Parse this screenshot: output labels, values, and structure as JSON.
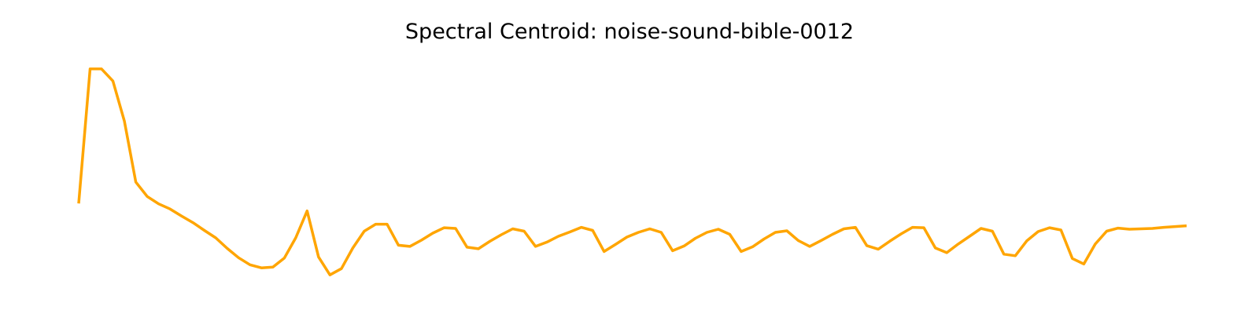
{
  "chart_data": {
    "type": "line",
    "title": "Spectral Centroid: noise-sound-bible-0012",
    "xlabel": "",
    "ylabel": "",
    "axes_visible": false,
    "grid": false,
    "series": [
      {
        "color": "#FFA500",
        "values": [
          3395,
          5120,
          5120,
          4965,
          4450,
          3670,
          3485,
          3390,
          3325,
          3235,
          3150,
          3050,
          2955,
          2820,
          2700,
          2610,
          2570,
          2580,
          2695,
          2955,
          3300,
          2710,
          2480,
          2560,
          2825,
          3040,
          3130,
          3130,
          2860,
          2845,
          2925,
          3015,
          3085,
          3075,
          2835,
          2815,
          2910,
          2995,
          3070,
          3040,
          2845,
          2900,
          2975,
          3030,
          3090,
          3050,
          2780,
          2870,
          2965,
          3025,
          3070,
          3025,
          2790,
          2850,
          2950,
          3025,
          3065,
          3000,
          2780,
          2840,
          2940,
          3025,
          3045,
          2920,
          2845,
          2920,
          3000,
          3070,
          3090,
          2855,
          2810,
          2910,
          3005,
          3090,
          3085,
          2825,
          2765,
          2875,
          2975,
          3075,
          3040,
          2745,
          2725,
          2915,
          3035,
          3085,
          3055,
          2690,
          2620,
          2875,
          3040,
          3080,
          3065,
          3070,
          3075,
          3090,
          3100,
          3110
        ]
      }
    ],
    "ylim": [
      2200,
      5400
    ]
  }
}
